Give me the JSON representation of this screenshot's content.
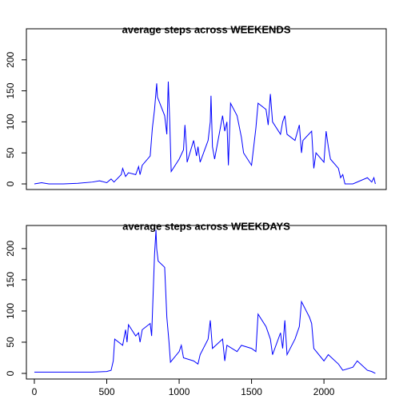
{
  "chart_data": [
    {
      "type": "line",
      "title": "average steps across WEEKENDS",
      "color": "#0000ff",
      "x": [
        0,
        50,
        100,
        200,
        300,
        400,
        450,
        500,
        530,
        550,
        600,
        610,
        630,
        650,
        700,
        720,
        730,
        745,
        800,
        815,
        830,
        845,
        850,
        900,
        915,
        925,
        935,
        945,
        1000,
        1030,
        1040,
        1050,
        1055,
        1100,
        1120,
        1130,
        1145,
        1200,
        1215,
        1220,
        1230,
        1245,
        1300,
        1315,
        1330,
        1340,
        1355,
        1400,
        1430,
        1445,
        1500,
        1530,
        1545,
        1600,
        1615,
        1630,
        1645,
        1700,
        1715,
        1730,
        1745,
        1800,
        1830,
        1845,
        1855,
        1915,
        1930,
        1945,
        2000,
        2015,
        2030,
        2045,
        2100,
        2115,
        2130,
        2145,
        2200,
        2300,
        2330,
        2345,
        2355
      ],
      "values": [
        0,
        2,
        0,
        0,
        1,
        3,
        5,
        2,
        8,
        3,
        15,
        25,
        12,
        18,
        15,
        28,
        15,
        30,
        45,
        90,
        120,
        162,
        140,
        110,
        80,
        165,
        100,
        20,
        40,
        55,
        95,
        60,
        35,
        70,
        45,
        60,
        35,
        70,
        100,
        142,
        60,
        40,
        110,
        85,
        100,
        30,
        130,
        110,
        75,
        50,
        30,
        90,
        130,
        120,
        95,
        145,
        100,
        80,
        100,
        110,
        80,
        70,
        95,
        50,
        70,
        85,
        25,
        50,
        35,
        85,
        60,
        40,
        25,
        10,
        15,
        0,
        0,
        10,
        3,
        10,
        0
      ],
      "xlim": [
        -55,
        2430
      ],
      "ylim": [
        -9,
        250
      ],
      "yticks": [
        0,
        50,
        100,
        150,
        200
      ]
    },
    {
      "type": "line",
      "title": "average steps across WEEKDAYS",
      "color": "#0000ff",
      "x": [
        0,
        100,
        300,
        400,
        500,
        530,
        545,
        555,
        610,
        630,
        640,
        650,
        700,
        720,
        730,
        745,
        800,
        810,
        830,
        840,
        845,
        855,
        900,
        915,
        930,
        940,
        1000,
        1015,
        1030,
        1100,
        1130,
        1145,
        1200,
        1215,
        1230,
        1300,
        1315,
        1330,
        1400,
        1430,
        1500,
        1530,
        1545,
        1600,
        1630,
        1645,
        1700,
        1715,
        1730,
        1745,
        1800,
        1830,
        1845,
        1900,
        1915,
        1930,
        2000,
        2030,
        2100,
        2130,
        2200,
        2230,
        2300,
        2330,
        2355
      ],
      "values": [
        2,
        2,
        2,
        2,
        3,
        5,
        20,
        55,
        45,
        70,
        50,
        78,
        60,
        65,
        50,
        70,
        80,
        60,
        190,
        230,
        200,
        180,
        170,
        90,
        50,
        18,
        35,
        45,
        25,
        20,
        15,
        30,
        55,
        85,
        40,
        55,
        20,
        45,
        35,
        45,
        40,
        35,
        95,
        75,
        55,
        30,
        65,
        40,
        85,
        30,
        55,
        75,
        115,
        90,
        80,
        40,
        20,
        30,
        15,
        5,
        10,
        20,
        5,
        3,
        0
      ],
      "xlim": [
        -55,
        2430
      ],
      "ylim": [
        -9,
        237
      ],
      "yticks": [
        0,
        50,
        100,
        150,
        200
      ],
      "xticks": [
        0,
        500,
        1000,
        1500,
        2000
      ]
    }
  ]
}
